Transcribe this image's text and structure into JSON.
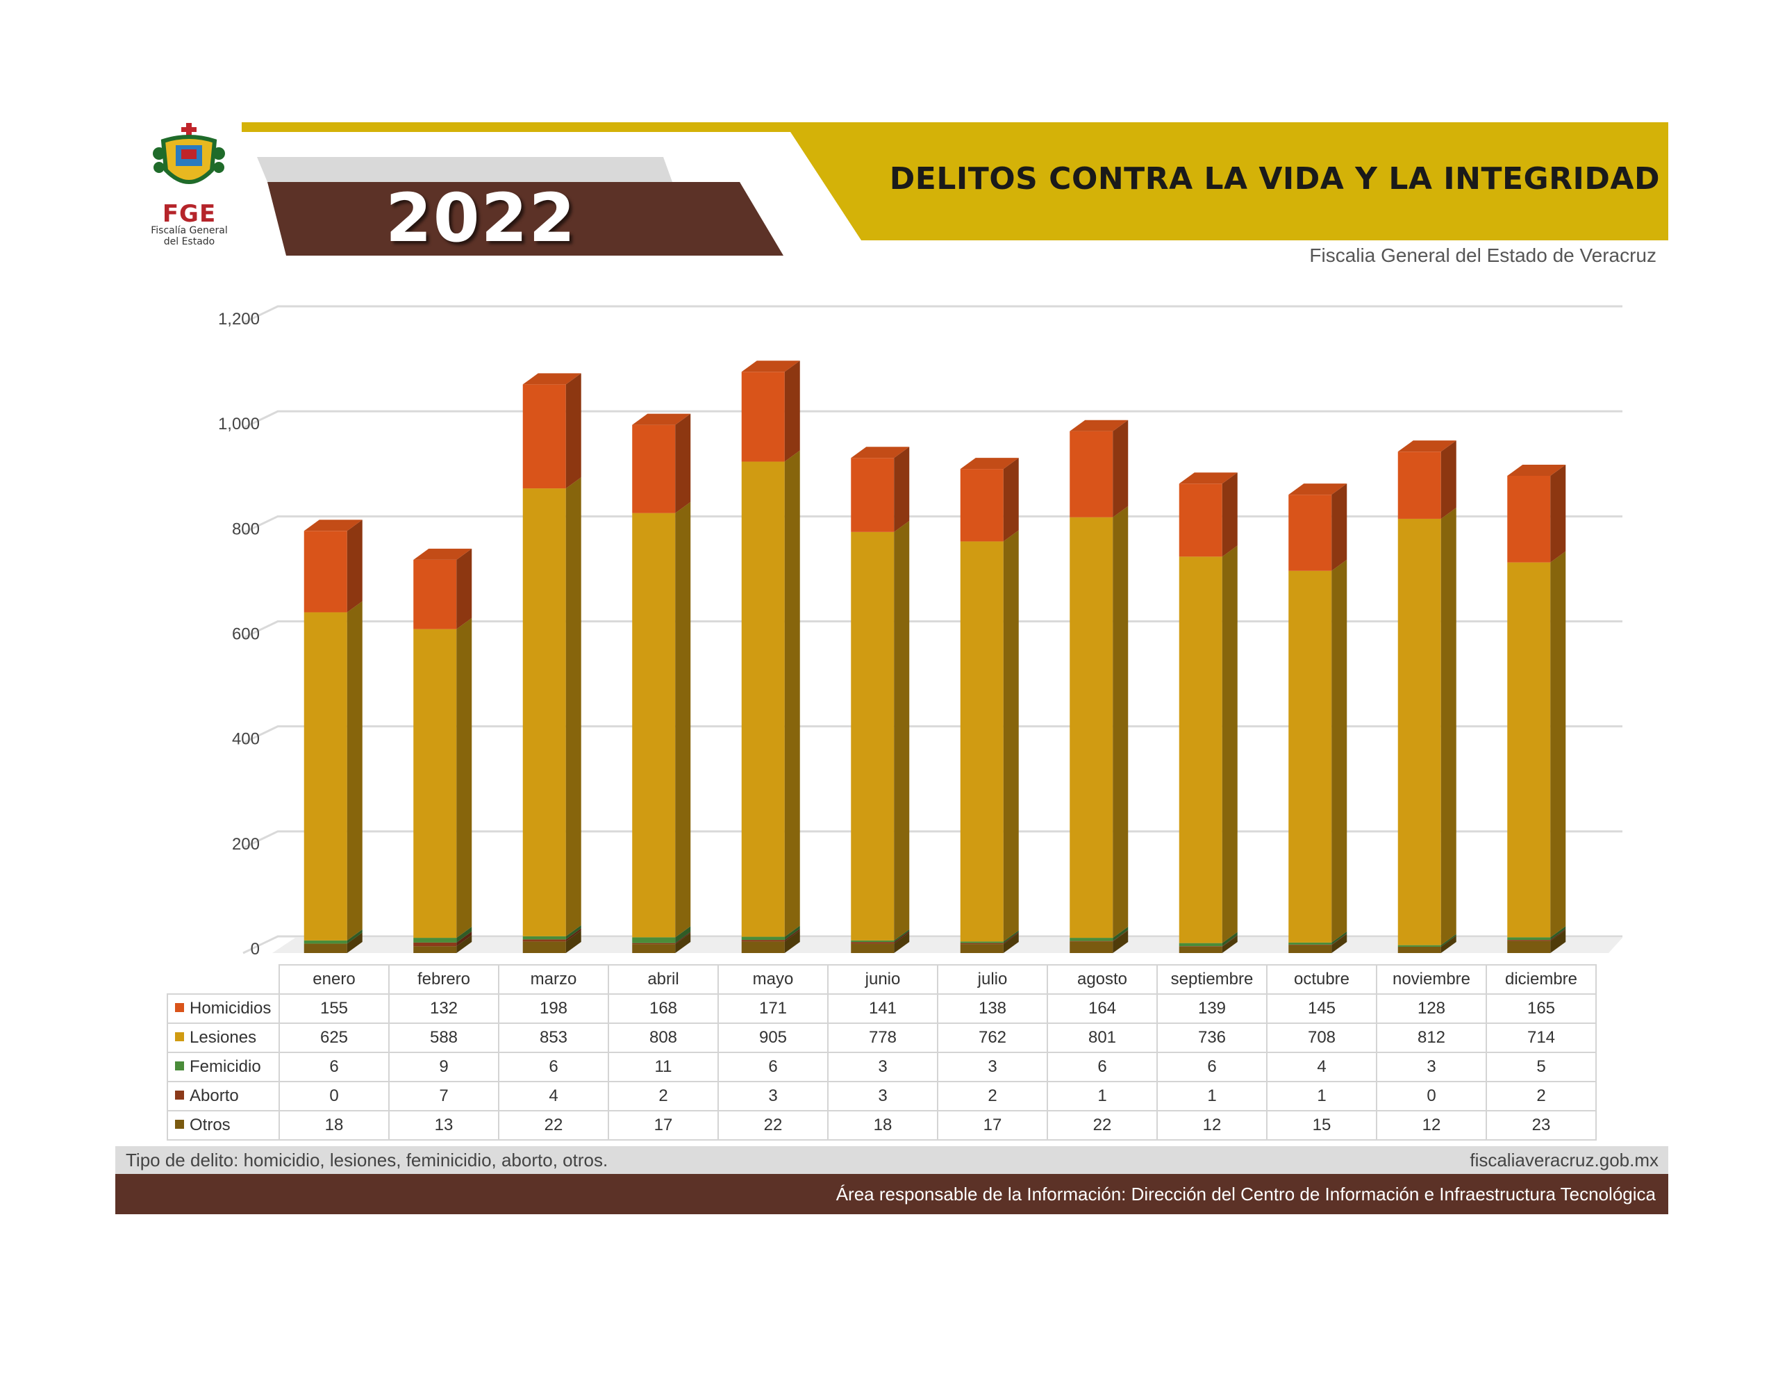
{
  "header": {
    "year": "2022",
    "title": "DELITOS CONTRA LA VIDA Y LA INTEGRIDAD",
    "source": "Fiscalia General del Estado de Veracruz"
  },
  "logo": {
    "acronym": "FGE",
    "subtitle_line1": "Fiscalía General",
    "subtitle_line2": "del Estado"
  },
  "colors": {
    "gold": "#d4b208",
    "brown": "#5c3227",
    "gray_stripe": "#d9d9d9",
    "homicidios": "#d9541a",
    "lesiones": "#d09b12",
    "femicidio": "#4a8c3a",
    "aborto": "#8b3a1a",
    "otros": "#7a5a10"
  },
  "chart_data": {
    "type": "bar",
    "stacked": true,
    "style": "3d",
    "categories": [
      "enero",
      "febrero",
      "marzo",
      "abril",
      "mayo",
      "junio",
      "julio",
      "agosto",
      "septiembre",
      "octubre",
      "noviembre",
      "diciembre"
    ],
    "series": [
      {
        "name": "Homicidios",
        "color": "#d9541a",
        "values": [
          155,
          132,
          198,
          168,
          171,
          141,
          138,
          164,
          139,
          145,
          128,
          165
        ]
      },
      {
        "name": "Lesiones",
        "color": "#d09b12",
        "values": [
          625,
          588,
          853,
          808,
          905,
          778,
          762,
          801,
          736,
          708,
          812,
          714
        ]
      },
      {
        "name": "Femicidio",
        "color": "#4a8c3a",
        "values": [
          6,
          9,
          6,
          11,
          6,
          3,
          3,
          6,
          6,
          4,
          3,
          5
        ]
      },
      {
        "name": "Aborto",
        "color": "#8b3a1a",
        "values": [
          0,
          7,
          4,
          2,
          3,
          3,
          2,
          1,
          1,
          1,
          0,
          2
        ]
      },
      {
        "name": "Otros",
        "color": "#7a5a10",
        "values": [
          18,
          13,
          22,
          17,
          22,
          18,
          17,
          22,
          12,
          15,
          12,
          23
        ]
      }
    ],
    "stack_order_bottom_to_top": [
      "Otros",
      "Aborto",
      "Femicidio",
      "Lesiones",
      "Homicidios"
    ],
    "ylim": [
      0,
      1200
    ],
    "yticks": [
      0,
      200,
      400,
      600,
      800,
      1000,
      1200
    ],
    "ytick_labels": [
      "0",
      "200",
      "400",
      "600",
      "800",
      "1,000",
      "1,200"
    ],
    "grid": true,
    "legend": "data-table-below"
  },
  "footer": {
    "note": "Tipo de delito: homicidio, lesiones, feminicidio, aborto, otros.",
    "website": "fiscaliaveracruz.gob.mx",
    "responsible": "Área responsable de la Información: Dirección del Centro de Información e Infraestructura Tecnológica"
  }
}
